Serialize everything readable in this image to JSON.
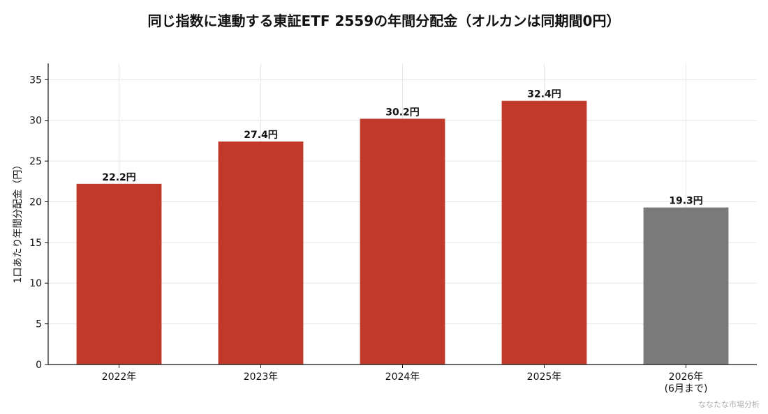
{
  "chart_data": {
    "type": "bar",
    "title": "同じ指数に連動する東証ETF 2559の年間分配金（オルカンは同期間0円）",
    "ylabel": "1口あたり年間分配金（円）",
    "xlabel": "",
    "ylim": [
      0,
      37
    ],
    "yticks": [
      0,
      5,
      10,
      15,
      20,
      25,
      30,
      35
    ],
    "grid": true,
    "categories": [
      [
        "2022年"
      ],
      [
        "2023年"
      ],
      [
        "2024年"
      ],
      [
        "2025年"
      ],
      [
        "2026年",
        "(6月まで)"
      ]
    ],
    "values": [
      22.2,
      27.4,
      30.2,
      32.4,
      19.3
    ],
    "value_labels": [
      "22.2円",
      "27.4円",
      "30.2円",
      "32.4円",
      "19.3円"
    ],
    "bar_colors": [
      "#c0392b",
      "#c0392b",
      "#c0392b",
      "#c0392b",
      "#7a7a7a"
    ]
  },
  "watermark": "ななたな市場分析"
}
